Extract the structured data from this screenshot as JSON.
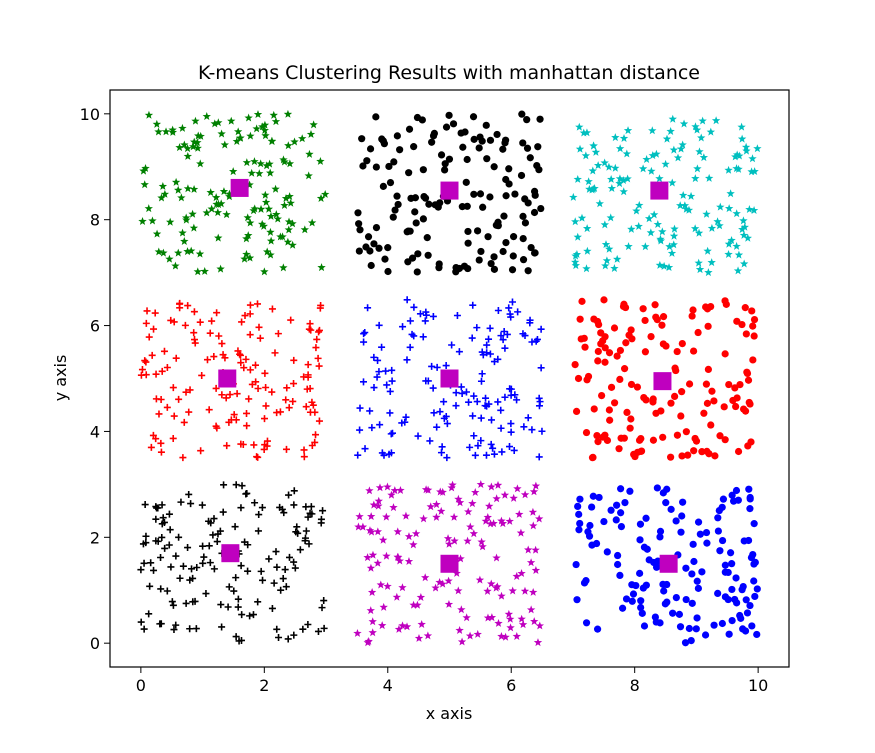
{
  "chart_data": {
    "type": "scatter",
    "title": "K-means Clustering Results with manhattan distance",
    "xlabel": "x axis",
    "ylabel": "y axis",
    "xlim": [
      -0.5,
      10.5
    ],
    "ylim": [
      -0.45,
      10.45
    ],
    "xticks": [
      0,
      2,
      4,
      6,
      8,
      10
    ],
    "xtick_labels": [
      "0",
      "2",
      "4",
      "6",
      "8",
      "10"
    ],
    "yticks": [
      0,
      2,
      4,
      6,
      8,
      10
    ],
    "ytick_labels": [
      "0",
      "2",
      "4",
      "6",
      "8",
      "10"
    ],
    "grid": false,
    "legend": "none",
    "clusters": [
      {
        "color": "#008000",
        "marker": "star",
        "x_range": [
          0,
          3
        ],
        "y_range": [
          7,
          10
        ],
        "centroid": [
          1.6,
          8.6
        ],
        "n": 150
      },
      {
        "color": "#000000",
        "marker": "circle",
        "x_range": [
          3.5,
          6.5
        ],
        "y_range": [
          7,
          10
        ],
        "centroid": [
          5.0,
          8.55
        ],
        "n": 150
      },
      {
        "color": "#00bfbf",
        "marker": "star",
        "x_range": [
          7,
          10
        ],
        "y_range": [
          7,
          10
        ],
        "centroid": [
          8.4,
          8.55
        ],
        "n": 150
      },
      {
        "color": "#ff0000",
        "marker": "plus",
        "x_range": [
          0,
          3
        ],
        "y_range": [
          3.5,
          6.5
        ],
        "centroid": [
          1.4,
          5.0
        ],
        "n": 150
      },
      {
        "color": "#0000ff",
        "marker": "plus",
        "x_range": [
          3.5,
          6.5
        ],
        "y_range": [
          3.5,
          6.5
        ],
        "centroid": [
          5.0,
          5.0
        ],
        "n": 150
      },
      {
        "color": "#ff0000",
        "marker": "circle",
        "x_range": [
          7,
          10
        ],
        "y_range": [
          3.5,
          6.5
        ],
        "centroid": [
          8.45,
          4.95
        ],
        "n": 150
      },
      {
        "color": "#000000",
        "marker": "plus",
        "x_range": [
          0,
          3
        ],
        "y_range": [
          0,
          3
        ],
        "centroid": [
          1.45,
          1.7
        ],
        "n": 150
      },
      {
        "color": "#bf00bf",
        "marker": "star",
        "x_range": [
          3.5,
          6.5
        ],
        "y_range": [
          0,
          3
        ],
        "centroid": [
          5.0,
          1.5
        ],
        "n": 150
      },
      {
        "color": "#0000ff",
        "marker": "circle",
        "x_range": [
          7,
          10
        ],
        "y_range": [
          0,
          3
        ],
        "centroid": [
          8.55,
          1.5
        ],
        "n": 150
      }
    ],
    "centroid_color": "#bf00bf",
    "centroid_marker": "square"
  }
}
